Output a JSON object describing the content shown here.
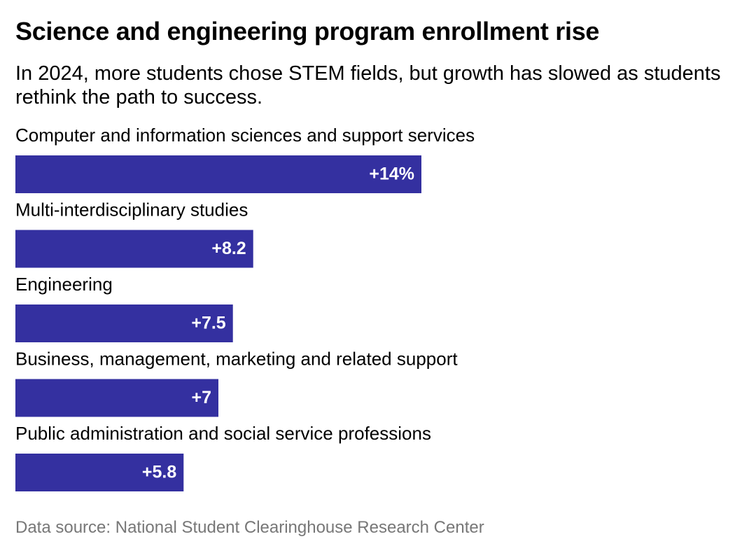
{
  "chart_data": {
    "type": "bar",
    "orientation": "horizontal",
    "title": "Science and engineering program enrollment rise",
    "subtitle": "In 2024, more students chose STEM fields, but growth has slowed as students rethink the path to success.",
    "categories": [
      "Computer and information sciences and support services",
      "Multi-interdisciplinary studies",
      "Engineering",
      "Business, management, marketing and related support",
      "Public administration and social service professions"
    ],
    "values": [
      14,
      8.2,
      7.5,
      7,
      5.8
    ],
    "value_labels": [
      "+14%",
      "+8.2",
      "+7.5",
      "+7",
      "+5.8"
    ],
    "color": "#3430a0",
    "source": "Data source: National Student Clearinghouse Research Center"
  }
}
